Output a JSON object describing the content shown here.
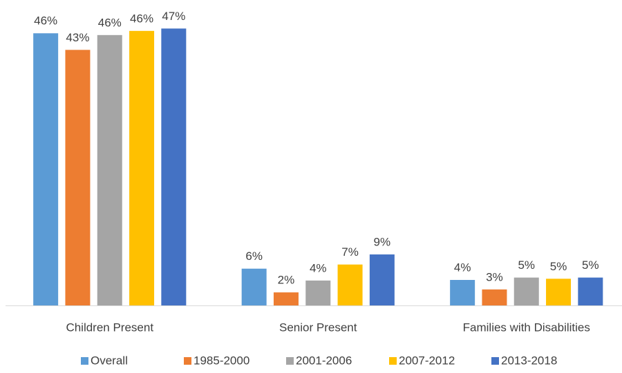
{
  "chart_data": {
    "type": "bar",
    "categories": [
      "Children Present",
      "Senior Present",
      "Families with Disabilities"
    ],
    "series": [
      {
        "name": "Overall",
        "color": "#5b9bd5",
        "values": [
          45.9,
          6.2,
          4.3
        ],
        "value_labels": [
          "46%",
          "6%",
          "4%"
        ]
      },
      {
        "name": "1985-2000",
        "color": "#ed7d31",
        "values": [
          43.1,
          2.2,
          2.7
        ],
        "value_labels": [
          "43%",
          "2%",
          "3%"
        ]
      },
      {
        "name": "2001-2006",
        "color": "#a5a5a5",
        "values": [
          45.6,
          4.2,
          4.7
        ],
        "value_labels": [
          "46%",
          "4%",
          "5%"
        ]
      },
      {
        "name": "2007-2012",
        "color": "#ffc000",
        "values": [
          46.3,
          6.9,
          4.5
        ],
        "value_labels": [
          "46%",
          "7%",
          "5%"
        ]
      },
      {
        "name": "2013-2018",
        "color": "#4472c4",
        "values": [
          46.7,
          8.6,
          4.7
        ],
        "value_labels": [
          "47%",
          "9%",
          "5%"
        ]
      }
    ],
    "legend": "bottom"
  }
}
